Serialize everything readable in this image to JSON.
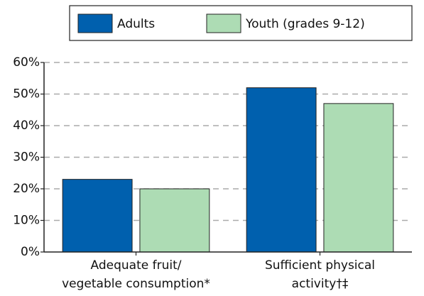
{
  "chart_data": {
    "type": "bar",
    "categories": [
      [
        "Adequate fruit/",
        "vegetable consumption*"
      ],
      [
        "Sufficient physical",
        "activity†‡"
      ]
    ],
    "series": [
      {
        "name": "Adults",
        "color": "#0060ae",
        "values": [
          23,
          52
        ]
      },
      {
        "name": "Youth (grades 9-12)",
        "color": "#addcb4",
        "values": [
          20,
          47
        ]
      }
    ],
    "ylim": [
      0,
      60
    ],
    "yticks": [
      {
        "value": 0,
        "label": "0%"
      },
      {
        "value": 10,
        "label": "10%"
      },
      {
        "value": 20,
        "label": "20%"
      },
      {
        "value": 30,
        "label": "30%"
      },
      {
        "value": 40,
        "label": "40%"
      },
      {
        "value": 50,
        "label": "50%"
      },
      {
        "value": 60,
        "label": "60%"
      }
    ],
    "grid": true,
    "legend": "top"
  }
}
